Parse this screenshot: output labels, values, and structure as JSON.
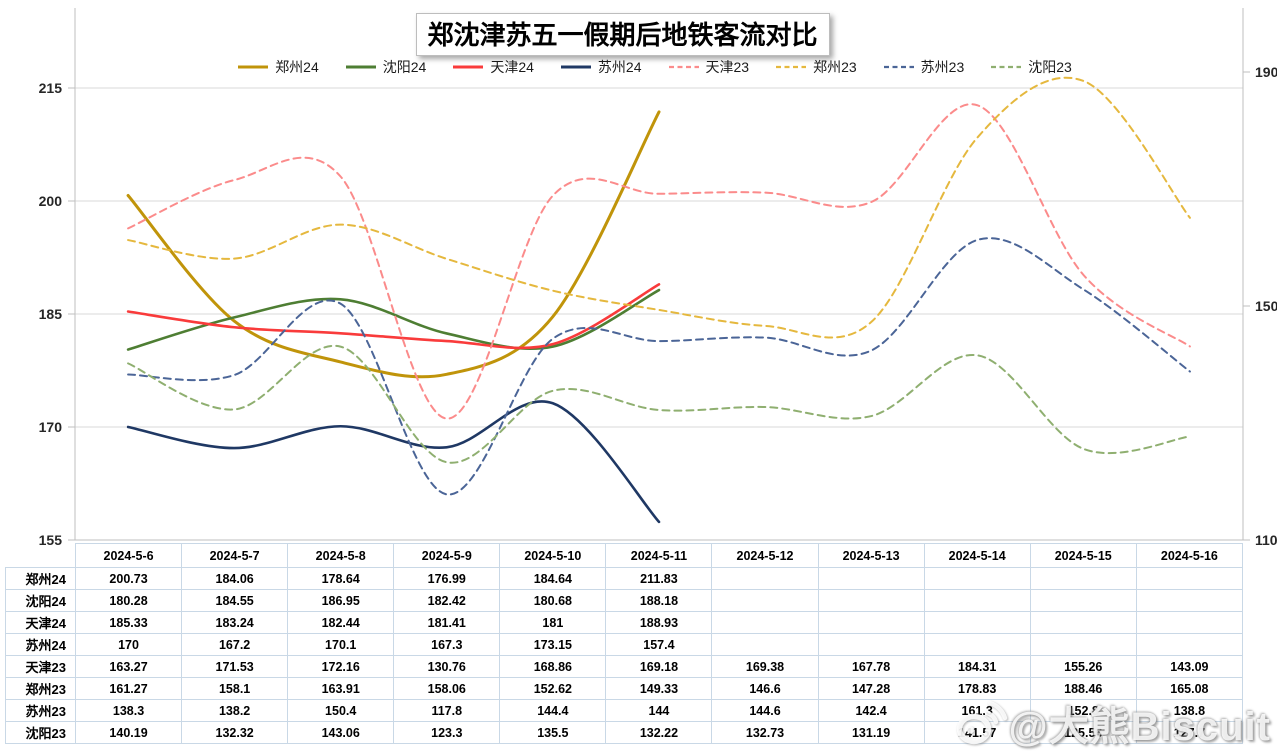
{
  "title": "郑沈津苏五一假期后地铁客流对比",
  "watermark": {
    "text": "@大熊Biscuit",
    "icon": "weibo-icon"
  },
  "chart_data": {
    "type": "line",
    "title": "郑沈津苏五一假期后地铁客流对比",
    "xlabel": "",
    "ylabel": "",
    "legend_position": "top",
    "grid": "horizontal",
    "smooth": true,
    "x": [
      "2024-5-6",
      "2024-5-7",
      "2024-5-8",
      "2024-5-9",
      "2024-5-10",
      "2024-5-11",
      "2024-5-12",
      "2024-5-13",
      "2024-5-14",
      "2024-5-15",
      "2024-5-16"
    ],
    "axes": {
      "left": {
        "min": 155,
        "max": 215,
        "ticks": [
          155,
          170,
          185,
          200,
          215
        ]
      },
      "right": {
        "min": 110,
        "max": 190,
        "ticks": [
          110,
          150,
          190
        ]
      }
    },
    "series": [
      {
        "name": "郑州24",
        "axis": "left",
        "style": "solid",
        "color": "#C0940A",
        "values": [
          200.73,
          184.06,
          178.64,
          176.99,
          184.64,
          211.83
        ]
      },
      {
        "name": "沈阳24",
        "axis": "left",
        "style": "solid",
        "color": "#4E7E33",
        "values": [
          180.28,
          184.55,
          186.95,
          182.42,
          180.68,
          188.18
        ]
      },
      {
        "name": "天津24",
        "axis": "left",
        "style": "solid",
        "color": "#F93B3B",
        "values": [
          185.33,
          183.24,
          182.44,
          181.41,
          181,
          188.93
        ]
      },
      {
        "name": "苏州24",
        "axis": "left",
        "style": "solid",
        "color": "#1F3864",
        "values": [
          170,
          167.2,
          170.1,
          167.3,
          173.15,
          157.4
        ]
      },
      {
        "name": "天津23",
        "axis": "right",
        "style": "dashed",
        "color": "#FB8B8B",
        "values": [
          163.27,
          171.53,
          172.16,
          130.76,
          168.86,
          169.18,
          169.38,
          167.78,
          184.31,
          155.26,
          143.09
        ]
      },
      {
        "name": "郑州23",
        "axis": "right",
        "style": "dashed",
        "color": "#E5B83E",
        "values": [
          161.27,
          158.1,
          163.91,
          158.06,
          152.62,
          149.33,
          146.6,
          147.28,
          178.83,
          188.46,
          165.08
        ]
      },
      {
        "name": "苏州23",
        "axis": "right",
        "style": "dashed",
        "color": "#4B6597",
        "values": [
          138.3,
          138.2,
          150.4,
          117.8,
          144.4,
          144,
          144.6,
          142.4,
          161.3,
          152.8,
          138.8
        ]
      },
      {
        "name": "沈阳23",
        "axis": "right",
        "style": "dashed",
        "color": "#8FAF70",
        "values": [
          140.19,
          132.32,
          143.06,
          123.3,
          135.5,
          132.22,
          132.73,
          131.19,
          141.57,
          125.56,
          127.7
        ]
      }
    ]
  },
  "table": {
    "columns": [
      "2024-5-6",
      "2024-5-7",
      "2024-5-8",
      "2024-5-9",
      "2024-5-10",
      "2024-5-11",
      "2024-5-12",
      "2024-5-13",
      "2024-5-14",
      "2024-5-15",
      "2024-5-16"
    ],
    "rows": [
      {
        "label": "郑州24",
        "cells": [
          "200.73",
          "184.06",
          "178.64",
          "176.99",
          "184.64",
          "211.83",
          "",
          "",
          "",
          "",
          ""
        ]
      },
      {
        "label": "沈阳24",
        "cells": [
          "180.28",
          "184.55",
          "186.95",
          "182.42",
          "180.68",
          "188.18",
          "",
          "",
          "",
          "",
          ""
        ]
      },
      {
        "label": "天津24",
        "cells": [
          "185.33",
          "183.24",
          "182.44",
          "181.41",
          "181",
          "188.93",
          "",
          "",
          "",
          "",
          ""
        ]
      },
      {
        "label": "苏州24",
        "cells": [
          "170",
          "167.2",
          "170.1",
          "167.3",
          "173.15",
          "157.4",
          "",
          "",
          "",
          "",
          ""
        ]
      },
      {
        "label": "天津23",
        "cells": [
          "163.27",
          "171.53",
          "172.16",
          "130.76",
          "168.86",
          "169.18",
          "169.38",
          "167.78",
          "184.31",
          "155.26",
          "143.09"
        ]
      },
      {
        "label": "郑州23",
        "cells": [
          "161.27",
          "158.1",
          "163.91",
          "158.06",
          "152.62",
          "149.33",
          "146.6",
          "147.28",
          "178.83",
          "188.46",
          "165.08"
        ]
      },
      {
        "label": "苏州23",
        "cells": [
          "138.3",
          "138.2",
          "150.4",
          "117.8",
          "144.4",
          "144",
          "144.6",
          "142.4",
          "161.3",
          "152.8",
          "138.8"
        ]
      },
      {
        "label": "沈阳23",
        "cells": [
          "140.19",
          "132.32",
          "143.06",
          "123.3",
          "135.5",
          "132.22",
          "132.73",
          "131.19",
          "141.57",
          "125.56",
          "127.7"
        ]
      }
    ]
  }
}
